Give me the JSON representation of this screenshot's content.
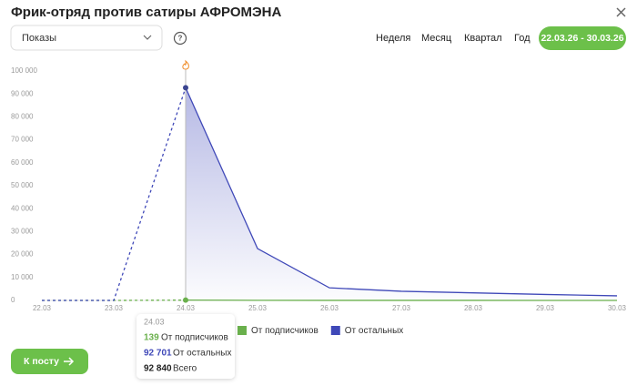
{
  "header": {
    "title": "Фрик-отряд против сатиры АФРОМЭНА",
    "metric": "Показы",
    "help": "?",
    "periods": [
      "Неделя",
      "Месяц",
      "Квартал",
      "Год"
    ],
    "active_range": "22.03.26 - 30.03.26"
  },
  "chart_data": {
    "type": "line",
    "categories": [
      "22.03",
      "23.03",
      "24.03",
      "25.03",
      "26.03",
      "27.03",
      "28.03",
      "29.03",
      "30.03"
    ],
    "series": [
      {
        "name": "От подписчиков",
        "color": "#6ab04c",
        "values": [
          0,
          0,
          139,
          60,
          30,
          20,
          15,
          10,
          10
        ]
      },
      {
        "name": "От остальных",
        "color": "#3f48b8",
        "values": [
          0,
          0,
          92701,
          22600,
          5500,
          4000,
          3300,
          2600,
          2000
        ]
      }
    ],
    "ylim": [
      0,
      100000
    ],
    "yticks": [
      0,
      {
        "value": 10000,
        "label": "10 000"
      },
      {
        "value": 20000,
        "label": "20 000"
      },
      {
        "value": 30000,
        "label": "30 000"
      },
      {
        "value": 40000,
        "label": "40 000"
      },
      {
        "value": 50000,
        "label": "50 000"
      },
      {
        "value": 60000,
        "label": "60 000"
      },
      {
        "value": 70000,
        "label": "70 000"
      },
      {
        "value": 80000,
        "label": "80 000"
      },
      {
        "value": 90000,
        "label": "90 000"
      },
      {
        "value": 100000,
        "label": "100 000"
      }
    ]
  },
  "tooltip": {
    "date": "24.03",
    "rows": [
      {
        "value": "139",
        "label": "От подписчиков"
      },
      {
        "value": "92 701",
        "label": "От остальных"
      },
      {
        "value": "92 840",
        "label": "Всего"
      }
    ]
  },
  "button": "К посту"
}
